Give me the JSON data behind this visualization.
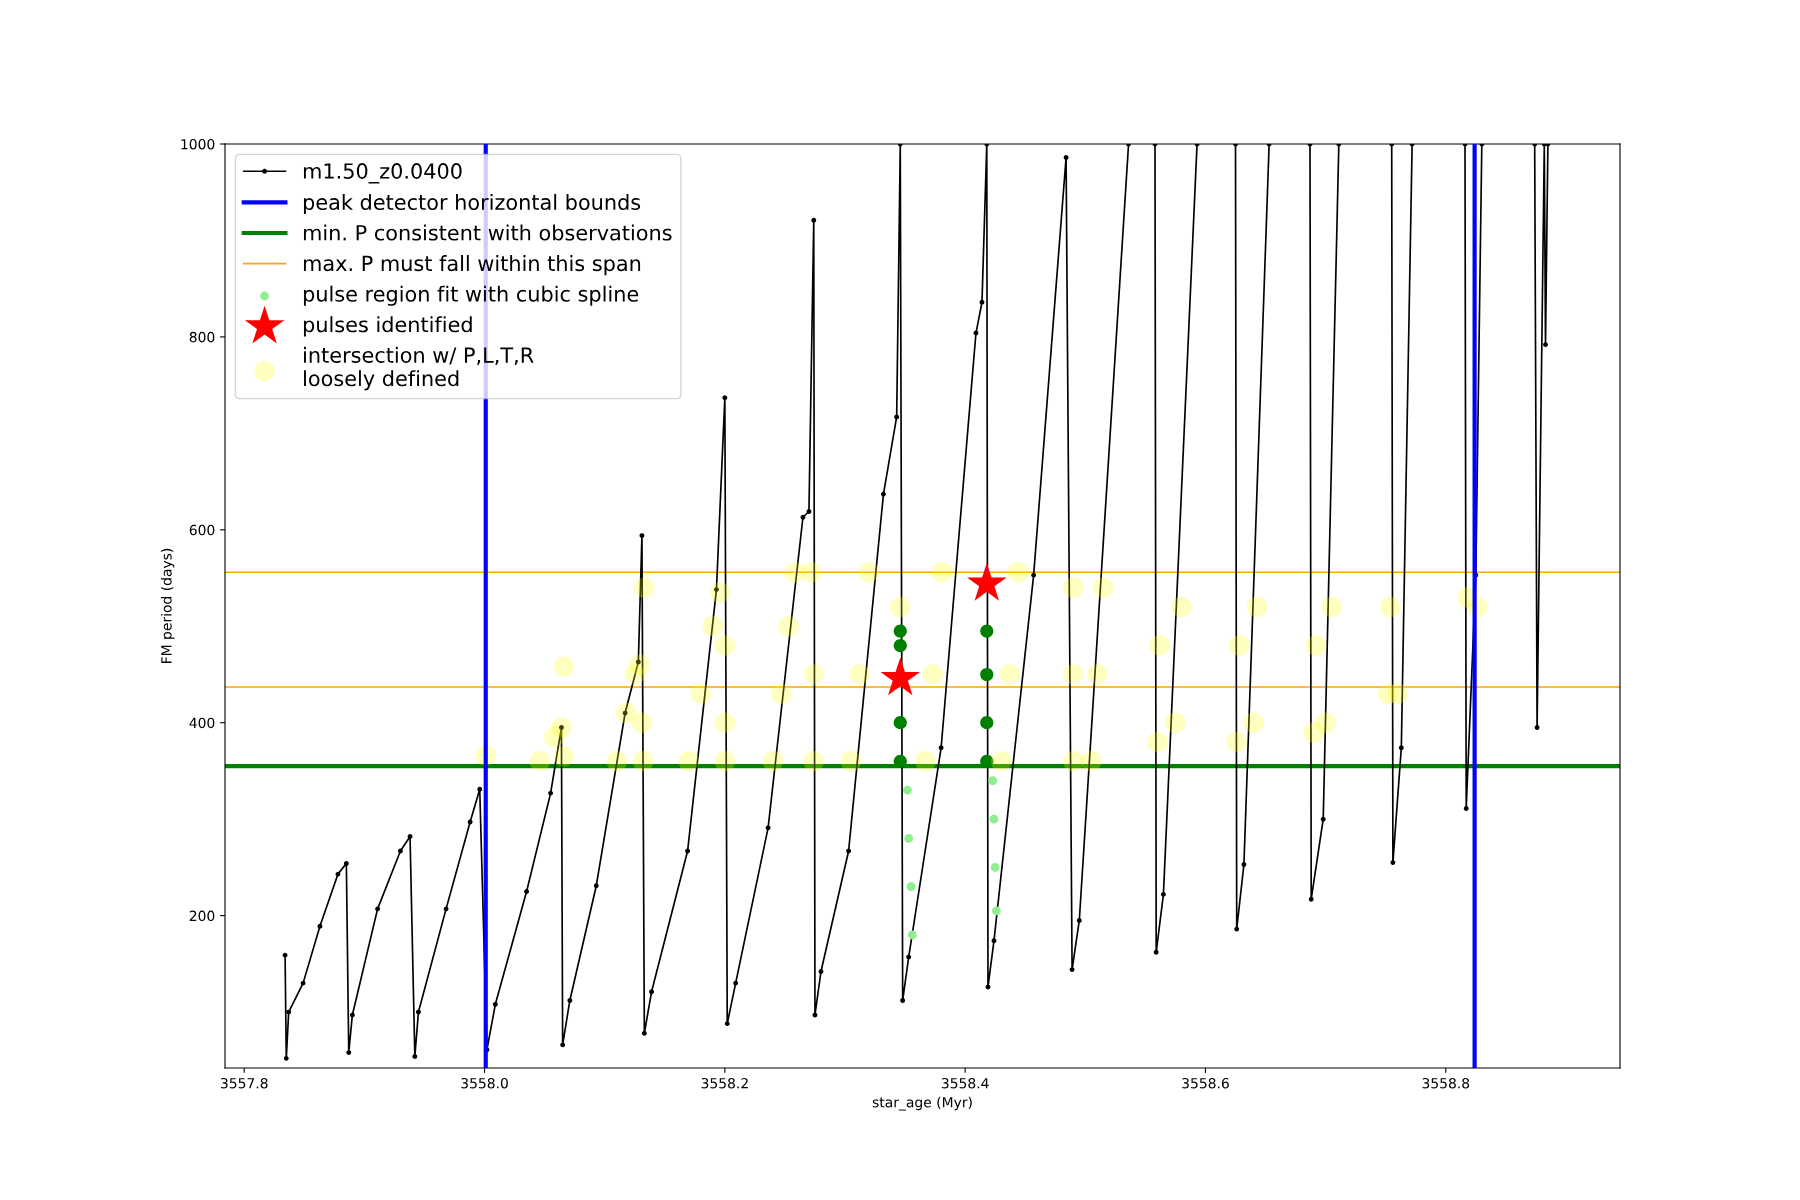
{
  "chart_data": {
    "type": "line",
    "xlabel": "star_age (Myr)",
    "ylabel": "FM period (days)",
    "xlim": [
      3557.784,
      3558.945
    ],
    "xticks": [
      3557.8,
      {
        "value": 3558.0,
        "label": "3558.0"
      },
      3558.2,
      3558.4,
      3558.6,
      3558.8
    ],
    "ylim": [
      42,
      1000
    ],
    "yticks": [
      200,
      400,
      600,
      800,
      1000
    ],
    "grid": false,
    "legend": "top left",
    "ref_lines": [
      {
        "axis": "x",
        "value": 3558.001,
        "label": "peak detector horizontal bounds",
        "color": "#0000ff"
      },
      {
        "axis": "x",
        "value": 3558.824,
        "label": null,
        "color": "#0000ff"
      },
      {
        "axis": "y",
        "value": 355,
        "label": "min. P consistent with observations",
        "color": "#008000"
      },
      {
        "axis": "y",
        "value": 556,
        "label": "max. P must fall within this span",
        "color": "#ffa500"
      },
      {
        "axis": "y",
        "value": 437,
        "label": null,
        "color": "#ffa500"
      }
    ],
    "series": [
      {
        "name": "m1.50_z0.0400",
        "color": "#000000",
        "marker": "circle",
        "x": [
          3557.834,
          3557.835,
          3557.837,
          3557.849,
          3557.863,
          3557.878,
          3557.885,
          3557.887,
          3557.89,
          3557.911,
          3557.93,
          3557.938,
          3557.942,
          3557.945,
          3557.968,
          3557.988,
          3557.996,
          3558.002,
          3558.009,
          3558.035,
          3558.055,
          3558.064,
          3558.065,
          3558.071,
          3558.093,
          3558.117,
          3558.128,
          3558.131,
          3558.133,
          3558.139,
          3558.169,
          3558.193,
          3558.2,
          3558.202,
          3558.209,
          3558.236,
          3558.265,
          3558.27,
          3558.274,
          3558.275,
          3558.28,
          3558.303,
          3558.332,
          3558.343,
          3558.346,
          3558.348,
          3558.353,
          3558.38,
          3558.409,
          3558.414,
          3558.418,
          3558.419,
          3558.424,
          3558.457,
          3558.484,
          3558.489,
          3558.495,
          3558.536,
          3558.547,
          3558.558,
          3558.559,
          3558.565,
          3558.593,
          3558.609,
          3558.625,
          3558.626,
          3558.632,
          3558.653,
          3558.67,
          3558.687,
          3558.688,
          3558.698,
          3558.711,
          3558.733,
          3558.755,
          3558.756,
          3558.763,
          3558.772,
          3558.794,
          3558.816,
          3558.817,
          3558.825,
          3558.83,
          3558.852,
          3558.874,
          3558.876,
          3558.882,
          3558.883,
          3558.885
        ],
        "values": [
          159,
          52,
          100,
          130,
          189,
          243,
          254,
          58,
          97,
          207,
          267,
          282,
          54,
          100,
          207,
          297,
          331,
          61,
          108,
          225,
          327,
          395,
          66,
          112,
          231,
          410,
          463,
          594,
          78,
          121,
          267,
          538,
          737,
          88,
          130,
          291,
          613,
          619,
          921,
          97,
          142,
          267,
          637,
          717,
          1000,
          112,
          157,
          374,
          804,
          836,
          1000,
          126,
          174,
          553,
          986,
          144,
          195,
          1000,
          null,
          1000,
          162,
          222,
          1000,
          null,
          1000,
          186,
          253,
          1000,
          null,
          1000,
          217,
          300,
          1000,
          null,
          1000,
          255,
          374,
          1000,
          null,
          1000,
          311,
          553,
          1000,
          null,
          1000,
          395,
          1000,
          792,
          1000
        ]
      },
      {
        "name": "pulse region fit with cubic spline",
        "type": "scatter",
        "color": "#90ee90",
        "x": [
          3558.352,
          3558.353,
          3558.355,
          3558.356,
          3558.423,
          3558.424,
          3558.425,
          3558.426
        ],
        "values": [
          330,
          280,
          230,
          180,
          340,
          300,
          250,
          205
        ]
      },
      {
        "type": "scatter",
        "color": "#008000",
        "x": [
          3558.346,
          3558.346,
          3558.346,
          3558.346,
          3558.418,
          3558.418,
          3558.418,
          3558.418
        ],
        "values": [
          360,
          400,
          480,
          495,
          360,
          400,
          450,
          495
        ]
      },
      {
        "name": "pulses identified",
        "type": "scatter",
        "color": "#ff0000",
        "marker": "star",
        "x": [
          3558.346,
          3558.418
        ],
        "values": [
          446,
          544
        ]
      },
      {
        "name": "intersection w/ P,L,T,R\nloosely defined",
        "type": "scatter",
        "color": "#ffff00",
        "x": [
          3558.001,
          3558.046,
          3558.058,
          3558.064,
          3558.066,
          3558.066,
          3558.11,
          3558.118,
          3558.125,
          3558.129,
          3558.131,
          3558.132,
          3558.133,
          3558.17,
          3558.18,
          3558.19,
          3558.196,
          3558.2,
          3558.2,
          3558.2,
          3558.24,
          3558.247,
          3558.253,
          3558.258,
          3558.272,
          3558.274,
          3558.274,
          3558.305,
          3558.312,
          3558.32,
          3558.346,
          3558.367,
          3558.373,
          3558.381,
          3558.43,
          3558.437,
          3558.444,
          3558.49,
          3558.49,
          3558.49,
          3558.505,
          3558.51,
          3558.515,
          3558.56,
          3558.562,
          3558.575,
          3558.58,
          3558.626,
          3558.628,
          3558.64,
          3558.643,
          3558.69,
          3558.692,
          3558.7,
          3558.705,
          3558.752,
          3558.754,
          3558.76,
          3558.818,
          3558.826
        ],
        "values": [
          366,
          360,
          385,
          395,
          365,
          458,
          360,
          410,
          450,
          460,
          400,
          360,
          540,
          360,
          430,
          500,
          535,
          480,
          400,
          360,
          360,
          430,
          500,
          556,
          556,
          450,
          360,
          360,
          450,
          556,
          520,
          360,
          450,
          556,
          360,
          450,
          556,
          360,
          450,
          540,
          360,
          450,
          540,
          380,
          480,
          400,
          520,
          380,
          480,
          400,
          520,
          390,
          480,
          400,
          520,
          430,
          520,
          430,
          530,
          520
        ]
      }
    ]
  }
}
